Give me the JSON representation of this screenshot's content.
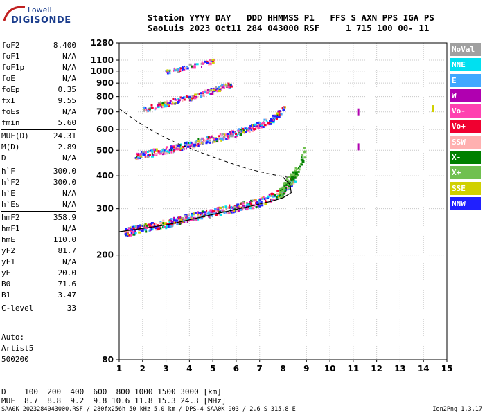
{
  "logo": {
    "line1": "Lowell",
    "line2": "DIGISONDE"
  },
  "header": {
    "line1": "Station YYYY DAY   DDD HHMMSS P1   FFS S AXN PPS IGA PS",
    "line2": "SaoLuis 2023 Oct11 284 043000 RSF     1 715 100 00- 11"
  },
  "params": [
    {
      "label": "foF2",
      "value": "8.400"
    },
    {
      "label": "foF1",
      "value": "N/A"
    },
    {
      "label": "foF1p",
      "value": "N/A"
    },
    {
      "label": "foE",
      "value": "N/A"
    },
    {
      "label": "foEp",
      "value": "0.35"
    },
    {
      "label": "fxI",
      "value": "9.55"
    },
    {
      "label": "foEs",
      "value": "N/A"
    },
    {
      "label": "fmin",
      "value": "5.60"
    },
    {
      "sep": true
    },
    {
      "label": "MUF(D)",
      "value": "24.31"
    },
    {
      "label": "M(D)",
      "value": "2.89"
    },
    {
      "label": "D",
      "value": "N/A"
    },
    {
      "sep": true
    },
    {
      "label": "h`F",
      "value": "300.0"
    },
    {
      "label": "h`F2",
      "value": "300.0"
    },
    {
      "label": "h`E",
      "value": "N/A"
    },
    {
      "label": "h`Es",
      "value": "N/A"
    },
    {
      "sep": true
    },
    {
      "label": "hmF2",
      "value": "358.9"
    },
    {
      "label": "hmF1",
      "value": "N/A"
    },
    {
      "label": "hmE",
      "value": "110.0"
    },
    {
      "label": "yF2",
      "value": "81.7"
    },
    {
      "label": "yF1",
      "value": "N/A"
    },
    {
      "label": "yE",
      "value": "20.0"
    },
    {
      "label": "B0",
      "value": "71.6"
    },
    {
      "label": "B1",
      "value": "3.47"
    },
    {
      "sep": true
    },
    {
      "label": "C-level",
      "value": "33"
    },
    {
      "sep": true
    }
  ],
  "extras": [
    "Auto:",
    "Artist5",
    "500200"
  ],
  "legend": [
    {
      "label": "NoVal",
      "color": "#a0a0a0"
    },
    {
      "label": "NNE",
      "color": "#00e0f0"
    },
    {
      "label": "E",
      "color": "#40a8ff"
    },
    {
      "label": "W",
      "color": "#b000b0"
    },
    {
      "label": "Vo-",
      "color": "#ff40b0"
    },
    {
      "label": "Vo+",
      "color": "#f00030"
    },
    {
      "label": "SSW",
      "color": "#ffb0b0"
    },
    {
      "label": "X-",
      "color": "#008000"
    },
    {
      "label": "X+",
      "color": "#70c050"
    },
    {
      "label": "SSE",
      "color": "#d0d000"
    },
    {
      "label": "NNW",
      "color": "#2020ff"
    }
  ],
  "muf_table": {
    "d_line": "D    100  200  400  600  800 1000 1500 3000 [km]",
    "muf_line": "MUF  8.7  8.8  9.2  9.8 10.6 11.8 15.3 24.3 [MHz]"
  },
  "footer": "SAA0K_2023284043000.RSF / 280fx256h 50 kHz 5.0 km / DPS-4 SAA0K 903 / 2.6 S 315.8 E",
  "version": "Ion2Png 1.3.17",
  "chart_data": {
    "type": "scatter",
    "x_ticks": [
      1,
      2,
      3,
      4,
      5,
      6,
      7,
      8,
      9,
      10,
      11,
      12,
      13,
      14,
      15
    ],
    "xlim": [
      1,
      15
    ],
    "y_scale": "log",
    "y_ticks": [
      80,
      200,
      300,
      400,
      500,
      600,
      700,
      800,
      900,
      1000,
      1100,
      1280
    ],
    "ylim": [
      80,
      1280
    ],
    "grid": true,
    "traces": [
      {
        "name": "F-trace 1",
        "x": [
          1.2,
          2.0,
          3.0,
          4.0,
          5.0,
          6.0,
          7.0,
          7.5,
          7.9,
          8.2,
          8.5
        ],
        "y": [
          245,
          255,
          265,
          280,
          292,
          305,
          320,
          335,
          350,
          370,
          400
        ]
      },
      {
        "name": "F-trace 2",
        "x": [
          1.6,
          2.5,
          3.5,
          4.5,
          5.5,
          6.5,
          7.0,
          7.5,
          7.8,
          8.1
        ],
        "y": [
          478,
          495,
          515,
          545,
          570,
          605,
          630,
          660,
          700,
          740
        ]
      },
      {
        "name": "F-trace 3",
        "x": [
          2.0,
          3.0,
          4.0,
          5.0,
          5.8
        ],
        "y": [
          720,
          760,
          800,
          850,
          900
        ]
      },
      {
        "name": "F-trace 4",
        "x": [
          2.9,
          3.5,
          4.0,
          4.5,
          5.0
        ],
        "y": [
          1000,
          1020,
          1050,
          1070,
          1100
        ]
      },
      {
        "name": "X-trace",
        "x": [
          7.8,
          8.1,
          8.4,
          8.7,
          8.9
        ],
        "y": [
          340,
          370,
          400,
          440,
          500
        ]
      }
    ],
    "profile_curve": {
      "x": [
        1.0,
        3.0,
        5.0,
        6.5,
        7.5,
        8.0,
        8.35,
        8.3,
        8.0
      ],
      "y": [
        245,
        260,
        285,
        305,
        320,
        330,
        345,
        370,
        395
      ]
    },
    "dashed_curve": {
      "x": [
        1.0,
        1.8,
        2.6,
        3.5,
        4.5,
        5.5,
        6.5,
        7.5,
        8.2
      ],
      "y": [
        720,
        640,
        580,
        530,
        490,
        455,
        425,
        405,
        395
      ]
    },
    "isolated_points": [
      {
        "x": 11.2,
        "y": 700
      },
      {
        "x": 11.2,
        "y": 515
      },
      {
        "x": 14.4,
        "y": 720
      }
    ]
  }
}
